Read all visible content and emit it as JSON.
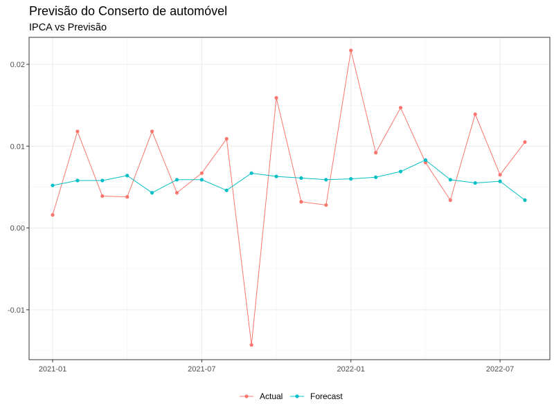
{
  "chart_data": {
    "type": "line",
    "title": "Previsão do Conserto de automóvel",
    "subtitle": "IPCA vs Previsão",
    "x": [
      "2021-01",
      "2021-02",
      "2021-03",
      "2021-04",
      "2021-05",
      "2021-06",
      "2021-07",
      "2021-08",
      "2021-09",
      "2021-10",
      "2021-11",
      "2021-12",
      "2022-01",
      "2022-02",
      "2022-03",
      "2022-04",
      "2022-05",
      "2022-06",
      "2022-07",
      "2022-08"
    ],
    "x_ticks": [
      "2021-01",
      "2021-07",
      "2022-01",
      "2022-07"
    ],
    "y_ticks": [
      -0.01,
      0.0,
      0.01,
      0.02
    ],
    "y_tick_labels": [
      "-0.01",
      "0.00",
      "0.01",
      "0.02"
    ],
    "ylim": [
      -0.0161,
      0.0233
    ],
    "grid": true,
    "legend_position": "bottom",
    "series": [
      {
        "name": "Actual",
        "color": "#F8766D",
        "values": [
          0.0016,
          0.0118,
          0.0039,
          0.0038,
          0.0118,
          0.0043,
          0.0067,
          0.0109,
          -0.0143,
          0.0159,
          0.0032,
          0.0028,
          0.0217,
          0.0092,
          0.0147,
          0.008,
          0.0034,
          0.0139,
          0.0065,
          0.0105
        ]
      },
      {
        "name": "Forecast",
        "color": "#00BFC4",
        "values": [
          0.0052,
          0.0058,
          0.0058,
          0.0064,
          0.0043,
          0.0059,
          0.0059,
          0.0046,
          0.0067,
          0.0063,
          0.0061,
          0.0059,
          0.006,
          0.0062,
          0.0069,
          0.0083,
          0.0059,
          0.0055,
          0.0057,
          0.0034
        ]
      }
    ]
  }
}
